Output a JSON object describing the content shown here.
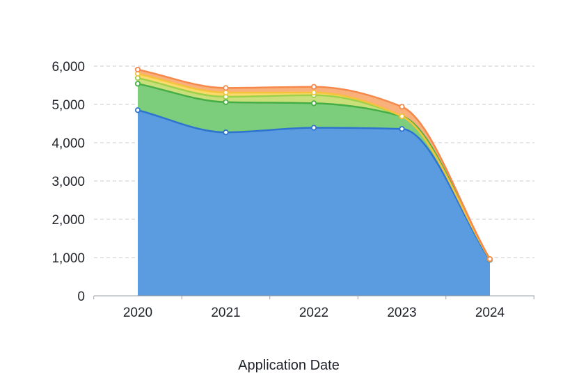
{
  "chart_data": {
    "type": "area",
    "stacked": true,
    "smooth": true,
    "categories": [
      "2020",
      "2021",
      "2022",
      "2023",
      "2024"
    ],
    "series": [
      {
        "values": [
          4850,
          4270,
          4390,
          4360,
          940
        ],
        "color": "#5b9bdf",
        "line_color": "#2e74cf"
      },
      {
        "values": [
          690,
          790,
          640,
          330,
          10
        ],
        "color": "#7ccd7c",
        "line_color": "#45ad45"
      },
      {
        "values": [
          150,
          140,
          210,
          0,
          5
        ],
        "color": "#c9e07a",
        "line_color": "#9fd04a"
      },
      {
        "values": [
          110,
          110,
          70,
          0,
          3
        ],
        "color": "#fbd96a",
        "line_color": "#f5c33b"
      },
      {
        "values": [
          110,
          120,
          150,
          250,
          2
        ],
        "color": "#f9b07a",
        "line_color": "#f5884a"
      }
    ],
    "title": "",
    "xlabel": "Application Date",
    "ylabel": "",
    "ylim": [
      0,
      6000
    ],
    "yticks": [
      0,
      1000,
      2000,
      3000,
      4000,
      5000,
      6000
    ],
    "ytick_labels": [
      "0",
      "1,000",
      "2,000",
      "3,000",
      "4,000",
      "5,000",
      "6,000"
    ],
    "grid": true,
    "legend": "none"
  }
}
